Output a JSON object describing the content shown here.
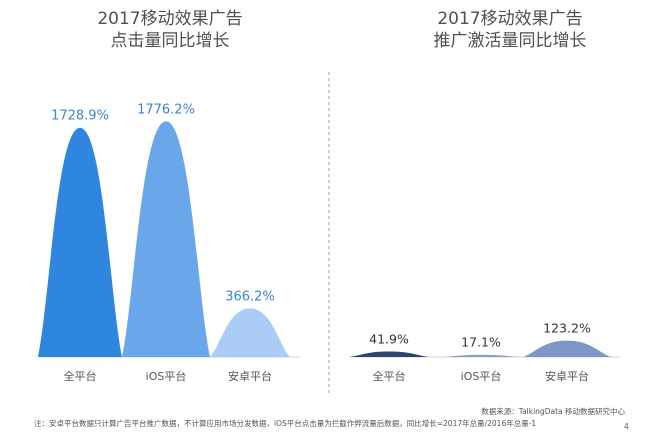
{
  "charts": {
    "left": {
      "title_line1": "2017移动效果广告",
      "title_line2": "点击量同比增长"
    },
    "right": {
      "title_line1": "2017移动效果广告",
      "title_line2": "推广激活量同比增长"
    }
  },
  "chart_data": [
    {
      "type": "bar",
      "title": "2017移动效果广告 点击量同比增长",
      "categories": [
        "全平台",
        "iOS平台",
        "安卓平台"
      ],
      "values": [
        1728.9,
        1776.2,
        366.2
      ],
      "labels": [
        "1728.9%",
        "1776.2%",
        "366.2%"
      ],
      "colors": [
        "#2e86de",
        "#6aa7ea",
        "#a9cdf6"
      ],
      "ylim": [
        0,
        1900
      ]
    },
    {
      "type": "bar",
      "title": "2017移动效果广告 推广激活量同比增长",
      "categories": [
        "全平台",
        "iOS平台",
        "安卓平台"
      ],
      "values": [
        41.9,
        17.1,
        123.2
      ],
      "labels": [
        "41.9%",
        "17.1%",
        "123.2%"
      ],
      "colors": [
        "#2f436f",
        "#8f9fc6",
        "#8196c8"
      ],
      "ylim": [
        0,
        1900
      ]
    }
  ],
  "notes": {
    "source": "数据来源：TalkingData 移动数据研究中心",
    "footnote": "注：安卓平台数据只计算广告平台推广数据，不计算应用市场分发数据，iOS平台点击量为拦截作弊流量后数据，同比增长=2017年总量/2016年总量-1",
    "page": "4"
  },
  "colors": {
    "value_label_left": "#3a86d6",
    "value_label_right": "#333333",
    "divider": "#9aa0a6"
  }
}
